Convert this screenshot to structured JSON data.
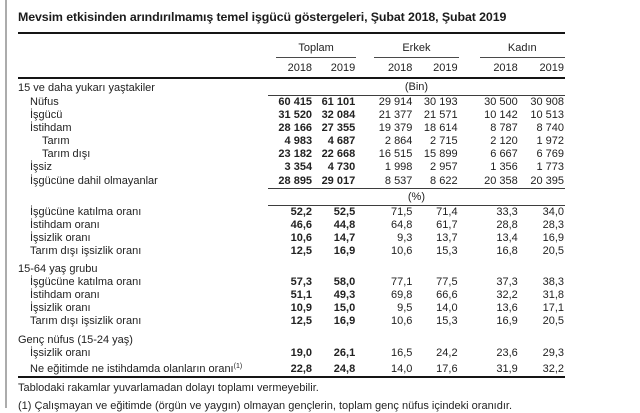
{
  "title": "Mevsim etkisinden arındırılmamış temel işgücü göstergeleri, Şubat 2018, Şubat 2019",
  "table": {
    "column_groups": [
      {
        "label": "Toplam"
      },
      {
        "label": "Erkek"
      },
      {
        "label": "Kadın"
      }
    ],
    "year_headers": [
      "2018",
      "2019",
      "2018",
      "2019",
      "2018",
      "2019"
    ],
    "rows": [
      {
        "type": "unit",
        "label": "15 ve daha yukarı yaştakiler",
        "indent": 0,
        "unit": "(Bin)"
      },
      {
        "type": "data",
        "label": "Nüfus",
        "indent": 1,
        "values": [
          "60 415",
          "61 101",
          "29 914",
          "30 193",
          "30 500",
          "30 908"
        ]
      },
      {
        "type": "data",
        "label": "İşgücü",
        "indent": 1,
        "values": [
          "31 520",
          "32 084",
          "21 377",
          "21 571",
          "10 142",
          "10 513"
        ]
      },
      {
        "type": "data",
        "label": "İstihdam",
        "indent": 1,
        "values": [
          "28 166",
          "27 355",
          "19 379",
          "18 614",
          "8 787",
          "8 740"
        ]
      },
      {
        "type": "data",
        "label": "Tarım",
        "indent": 2,
        "values": [
          "4 983",
          "4 687",
          "2 864",
          "2 715",
          "2 120",
          "1 972"
        ]
      },
      {
        "type": "data",
        "label": "Tarım dışı",
        "indent": 2,
        "values": [
          "23 182",
          "22 668",
          "16 515",
          "15 899",
          "6 667",
          "6 769"
        ]
      },
      {
        "type": "data",
        "label": "İşsiz",
        "indent": 1,
        "values": [
          "3 354",
          "4 730",
          "1 998",
          "2 957",
          "1 356",
          "1 773"
        ]
      },
      {
        "type": "data",
        "label": "İşgücüne dahil olmayanlar",
        "indent": 1,
        "bottom_line": true,
        "values": [
          "28 895",
          "29 017",
          "8 537",
          "8 622",
          "20 358",
          "20 395"
        ]
      },
      {
        "type": "unit",
        "label": "",
        "indent": 0,
        "unit": "(%)"
      },
      {
        "type": "data",
        "label": "İşgücüne katılma oranı",
        "indent": 1,
        "values": [
          "52,2",
          "52,5",
          "71,5",
          "71,4",
          "33,3",
          "34,0"
        ]
      },
      {
        "type": "data",
        "label": "İstihdam oranı",
        "indent": 1,
        "values": [
          "46,6",
          "44,8",
          "64,8",
          "61,7",
          "28,8",
          "28,3"
        ]
      },
      {
        "type": "data",
        "label": "İşsizlik oranı",
        "indent": 1,
        "values": [
          "10,6",
          "14,7",
          "9,3",
          "13,7",
          "13,4",
          "16,9"
        ]
      },
      {
        "type": "data",
        "label": "Tarım dışı işsizlik oranı",
        "indent": 1,
        "values": [
          "12,5",
          "16,9",
          "10,6",
          "15,3",
          "16,8",
          "20,5"
        ]
      },
      {
        "type": "section",
        "label": "15-64 yaş grubu",
        "indent": 0
      },
      {
        "type": "data",
        "label": "İşgücüne katılma oranı",
        "indent": 1,
        "values": [
          "57,3",
          "58,0",
          "77,1",
          "77,5",
          "37,3",
          "38,3"
        ]
      },
      {
        "type": "data",
        "label": "İstihdam oranı",
        "indent": 1,
        "values": [
          "51,1",
          "49,3",
          "69,8",
          "66,6",
          "32,2",
          "31,8"
        ]
      },
      {
        "type": "data",
        "label": "İşsizlik oranı",
        "indent": 1,
        "values": [
          "10,9",
          "15,0",
          "9,5",
          "14,0",
          "13,6",
          "17,1"
        ]
      },
      {
        "type": "data",
        "label": "Tarım dışı işsizlik oranı",
        "indent": 1,
        "values": [
          "12,5",
          "16,9",
          "10,6",
          "15,3",
          "16,9",
          "20,5"
        ]
      },
      {
        "type": "section",
        "label": "Genç nüfus (15-24 yaş)",
        "indent": 0
      },
      {
        "type": "data",
        "label": "İşsizlik oranı",
        "indent": 1,
        "values": [
          "19,0",
          "26,1",
          "16,5",
          "24,2",
          "23,6",
          "29,3"
        ]
      },
      {
        "type": "data",
        "label": "Ne eğitimde ne istihdamda olanların oranı",
        "label_sup": "(1)",
        "indent": 1,
        "extra_space": true,
        "values": [
          "22,8",
          "24,8",
          "14,0",
          "17,6",
          "31,9",
          "32,2"
        ]
      }
    ]
  },
  "footnotes": [
    "Tablodaki rakamlar yuvarlamadan dolayı toplamı vermeyebilir.",
    "(1) Çalışmayan ve eğitimde (örgün ve yaygın) olmayan gençlerin, toplam genç nüfus içindeki oranıdır."
  ]
}
